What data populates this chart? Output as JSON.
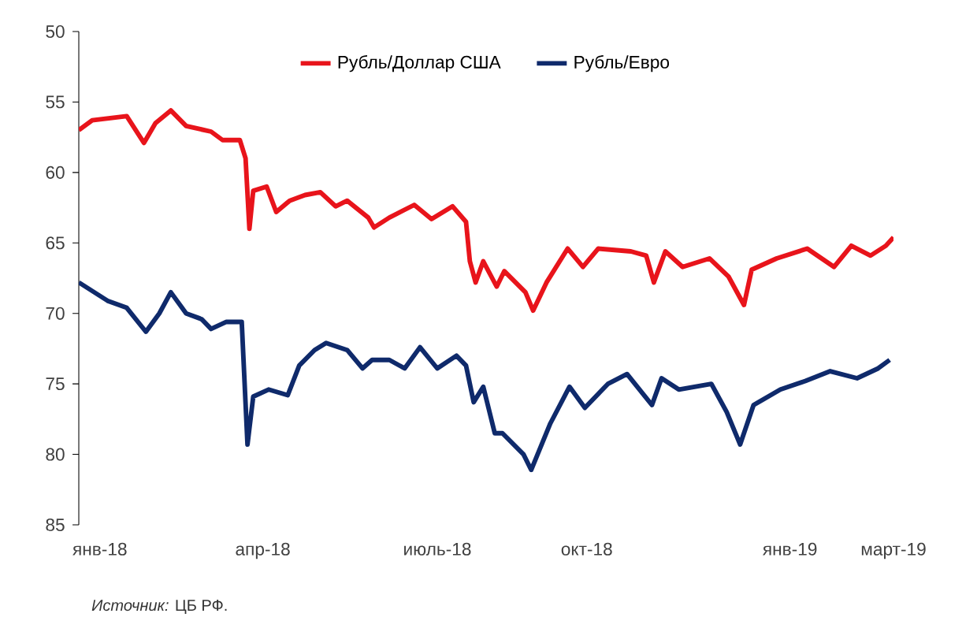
{
  "chart_data": {
    "type": "line",
    "xlim": [
      "2018-01-09",
      "2019-03-10"
    ],
    "ylim": [
      85,
      50
    ],
    "yticks": [
      50,
      55,
      60,
      65,
      70,
      75,
      80,
      85
    ],
    "xticks": [
      {
        "value": "2018-01-20",
        "label": "янв-18"
      },
      {
        "value": "2018-04-15",
        "label": "апр-18"
      },
      {
        "value": "2018-07-15",
        "label": "июль-18"
      },
      {
        "value": "2018-10-01",
        "label": "окт-18"
      },
      {
        "value": "2019-01-15",
        "label": "янв-19"
      },
      {
        "value": "2019-03-10",
        "label": "март-19"
      }
    ],
    "legend": "top",
    "grid": false,
    "annotations": [
      "*Источник:* ЦБ РФ."
    ],
    "series": [
      {
        "name": "Рубль/Доллар США",
        "color": "#e8141b",
        "x": [
          "2018-01-09",
          "2018-01-16",
          "2018-02-03",
          "2018-02-12",
          "2018-02-18",
          "2018-02-26",
          "2018-03-06",
          "2018-03-19",
          "2018-03-25",
          "2018-04-03",
          "2018-04-06",
          "2018-04-08",
          "2018-04-10",
          "2018-04-17",
          "2018-04-22",
          "2018-04-29",
          "2018-05-07",
          "2018-05-15",
          "2018-05-23",
          "2018-05-29",
          "2018-06-09",
          "2018-06-12",
          "2018-06-20",
          "2018-07-03",
          "2018-07-12",
          "2018-07-23",
          "2018-07-30",
          "2018-08-01",
          "2018-08-04",
          "2018-08-08",
          "2018-08-15",
          "2018-08-19",
          "2018-08-30",
          "2018-09-03",
          "2018-09-10",
          "2018-09-21",
          "2018-09-29",
          "2018-10-07",
          "2018-10-24",
          "2018-11-01",
          "2018-11-05",
          "2018-11-11",
          "2018-11-20",
          "2018-12-04",
          "2018-12-14",
          "2018-12-22",
          "2018-12-26",
          "2019-01-08",
          "2019-01-24",
          "2019-02-07",
          "2019-02-16",
          "2019-02-26",
          "2019-03-06",
          "2019-03-10"
        ],
        "values": [
          57.0,
          56.3,
          56.0,
          57.9,
          56.5,
          55.6,
          56.7,
          57.1,
          57.7,
          57.7,
          59.0,
          64.0,
          61.3,
          61.0,
          62.8,
          62.0,
          61.6,
          61.4,
          62.4,
          62.0,
          63.2,
          63.9,
          63.2,
          62.3,
          63.3,
          62.4,
          63.5,
          66.3,
          67.8,
          66.3,
          68.1,
          67.0,
          68.5,
          69.8,
          67.8,
          65.4,
          66.7,
          65.4,
          65.6,
          65.9,
          67.8,
          65.6,
          66.7,
          66.1,
          67.4,
          69.4,
          66.9,
          66.1,
          65.4,
          66.7,
          65.2,
          65.9,
          65.2,
          64.6
        ]
      },
      {
        "name": "Рубль/Евро",
        "color": "#0f2a6b",
        "x": [
          "2018-01-09",
          "2018-01-24",
          "2018-02-03",
          "2018-02-13",
          "2018-02-20",
          "2018-02-26",
          "2018-03-06",
          "2018-03-14",
          "2018-03-19",
          "2018-03-27",
          "2018-04-04",
          "2018-04-07",
          "2018-04-10",
          "2018-04-18",
          "2018-04-28",
          "2018-05-04",
          "2018-05-12",
          "2018-05-18",
          "2018-05-29",
          "2018-06-06",
          "2018-06-11",
          "2018-06-20",
          "2018-06-28",
          "2018-07-06",
          "2018-07-15",
          "2018-07-25",
          "2018-07-30",
          "2018-08-03",
          "2018-08-08",
          "2018-08-14",
          "2018-08-18",
          "2018-08-29",
          "2018-09-02",
          "2018-09-12",
          "2018-09-22",
          "2018-09-30",
          "2018-10-12",
          "2018-10-22",
          "2018-11-04",
          "2018-11-09",
          "2018-11-18",
          "2018-12-05",
          "2018-12-13",
          "2018-12-20",
          "2018-12-27",
          "2019-01-10",
          "2019-01-23",
          "2019-02-05",
          "2019-02-19",
          "2019-03-02",
          "2019-03-08"
        ],
        "values": [
          67.8,
          69.1,
          69.6,
          71.3,
          70.0,
          68.5,
          70.0,
          70.4,
          71.1,
          70.6,
          70.6,
          79.3,
          75.9,
          75.4,
          75.8,
          73.7,
          72.6,
          72.1,
          72.6,
          73.9,
          73.3,
          73.3,
          73.9,
          72.4,
          73.9,
          73.0,
          73.7,
          76.3,
          75.2,
          78.5,
          78.5,
          80.0,
          81.1,
          77.8,
          75.2,
          76.7,
          75.0,
          74.3,
          76.5,
          74.6,
          75.4,
          75.0,
          77.0,
          79.3,
          76.5,
          75.4,
          74.8,
          74.1,
          74.6,
          73.9,
          73.3
        ]
      }
    ]
  }
}
